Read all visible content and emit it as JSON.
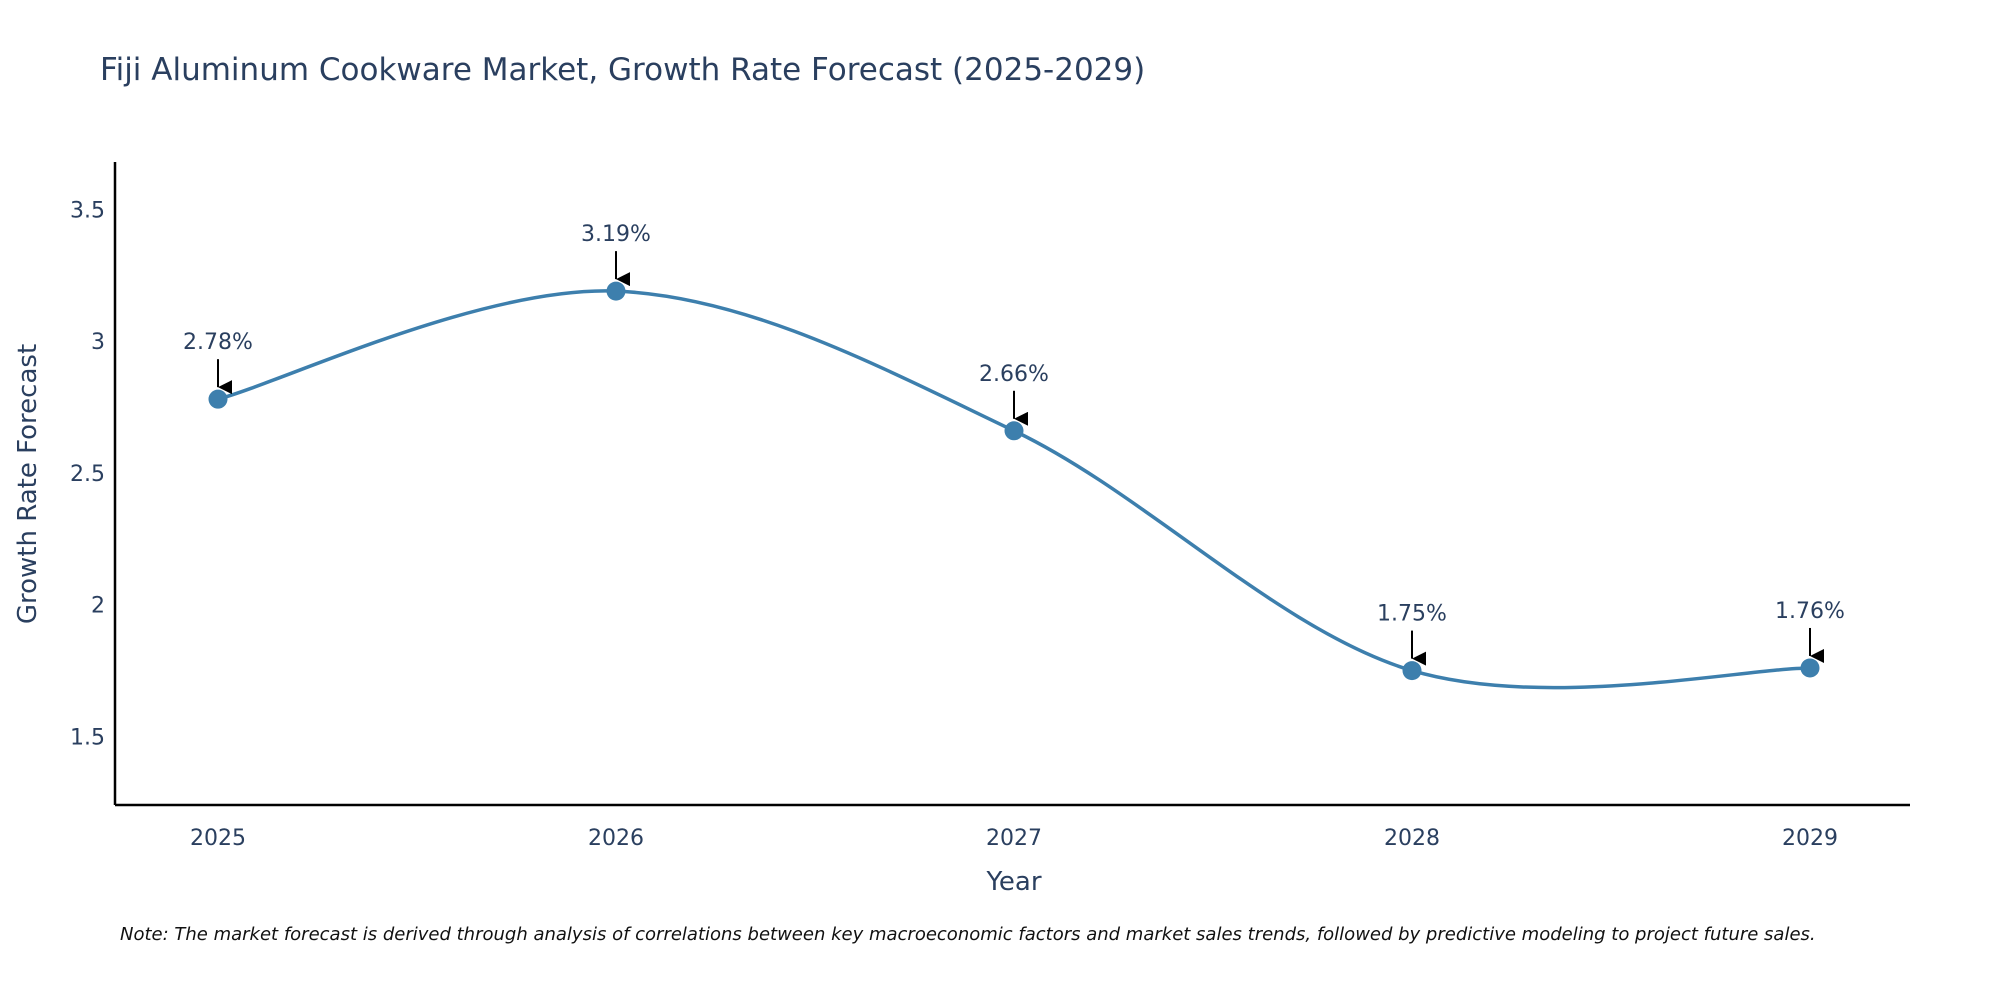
{
  "chart_data": {
    "type": "line",
    "title": "Fiji Aluminum Cookware Market, Growth Rate Forecast (2025-2029)",
    "xlabel": "Year",
    "ylabel": "Growth Rate Forecast",
    "categories": [
      "2025",
      "2026",
      "2027",
      "2028",
      "2029"
    ],
    "series": [
      {
        "name": "Growth Rate Forecast",
        "values": [
          2.78,
          3.19,
          2.66,
          1.75,
          1.76
        ],
        "labels": [
          "2.78%",
          "3.19%",
          "2.66%",
          "1.75%",
          "1.76%"
        ],
        "color": "#3d7fad"
      }
    ],
    "ylim": [
      1.24,
      3.68
    ],
    "yticks": [
      1.5,
      2,
      2.5,
      3,
      3.5
    ],
    "ytick_labels": [
      "1.5",
      "2",
      "2.5",
      "3",
      "3.5"
    ],
    "grid": false,
    "line_shape": "spline",
    "note": "Note: The market forecast is derived through analysis of correlations between key macroeconomic factors and market sales trends, followed by predictive modeling to project future sales."
  }
}
